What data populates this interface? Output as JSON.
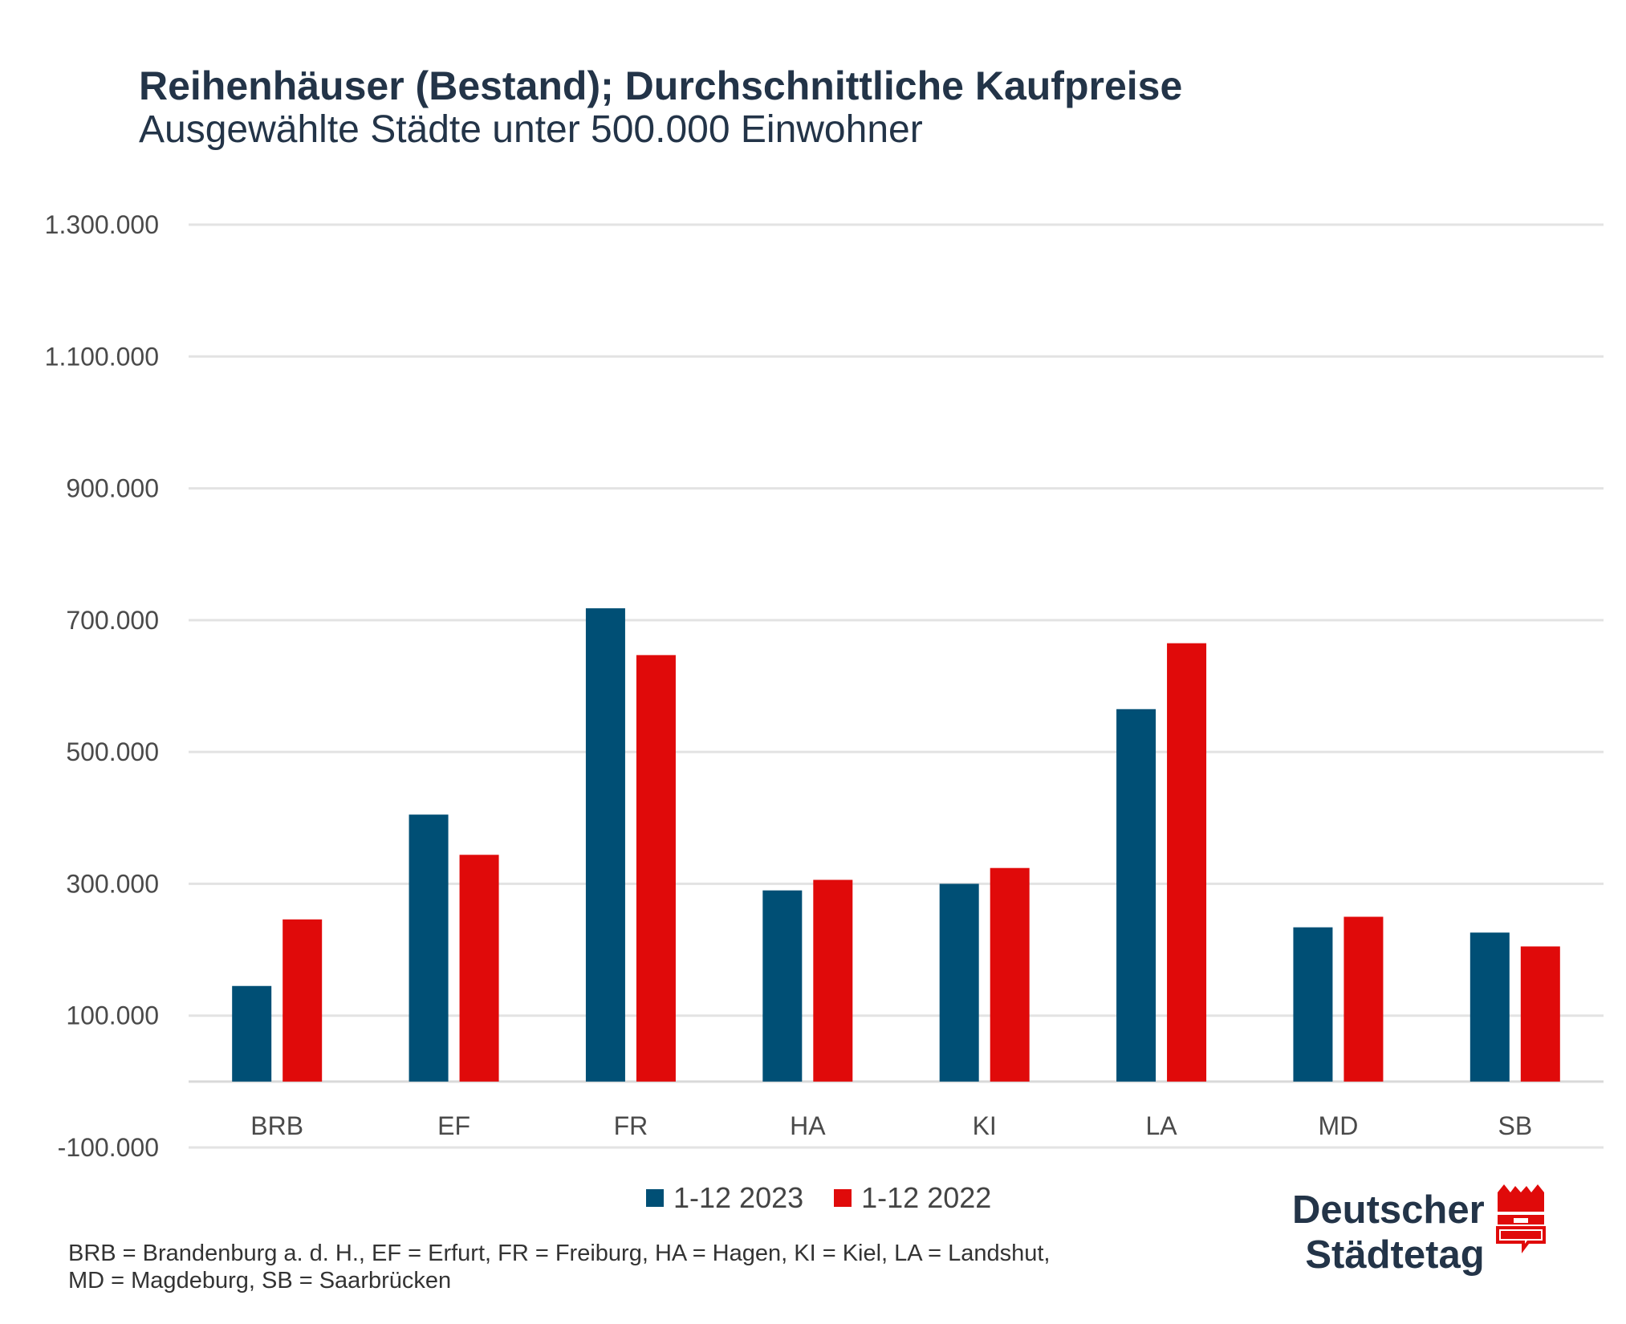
{
  "header": {
    "title": "Reihenhäuser (Bestand); Durchschnittliche Kaufpreise",
    "subtitle": "Ausgewählte Städte unter 500.000 Einwohner"
  },
  "chart_data": {
    "type": "bar",
    "title": "Reihenhäuser (Bestand); Durchschnittliche Kaufpreise",
    "subtitle": "Ausgewählte Städte unter 500.000 Einwohner",
    "xlabel": "",
    "ylabel": "",
    "ylim": [
      -100000,
      1300000
    ],
    "yticks": [
      -100000,
      100000,
      300000,
      500000,
      700000,
      900000,
      1100000,
      1300000
    ],
    "ytick_labels": [
      "-100.000",
      "100.000",
      "300.000",
      "500.000",
      "700.000",
      "900.000",
      "1.100.000",
      "1.300.000"
    ],
    "categories": [
      "BRB",
      "EF",
      "FR",
      "HA",
      "KI",
      "LA",
      "MD",
      "SB"
    ],
    "series": [
      {
        "name": "1-12 2023",
        "color": "#004f75",
        "values": [
          145000,
          405000,
          718000,
          290000,
          300000,
          565000,
          234000,
          226000
        ]
      },
      {
        "name": "1-12 2022",
        "color": "#e00a0a",
        "values": [
          246000,
          344000,
          647000,
          306000,
          324000,
          665000,
          250000,
          205000
        ]
      }
    ],
    "grid": true,
    "legend_position": "bottom-center"
  },
  "footnote": {
    "line1": "BRB = Brandenburg a. d. H., EF = Erfurt, FR = Freiburg, HA = Hagen, KI = Kiel, LA = Landshut,",
    "line2": "MD = Magdeburg, SB = Saarbrücken"
  },
  "logo": {
    "line1": "Deutscher",
    "line2": "Städtetag",
    "icon": "city-crown-icon",
    "color_primary": "#233448",
    "color_accent": "#e00a0a"
  }
}
